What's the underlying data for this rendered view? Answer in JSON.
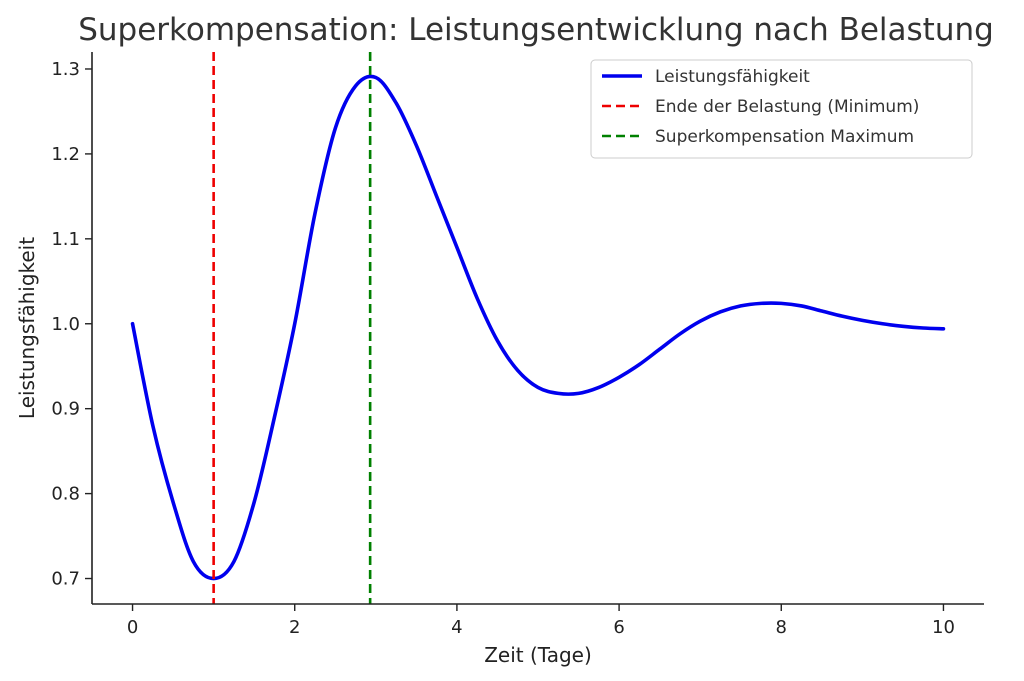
{
  "chart_data": {
    "type": "line",
    "title": "Superkompensation: Leistungsentwicklung nach Belastung",
    "xlabel": "Zeit (Tage)",
    "ylabel": "Leistungsfähigkeit",
    "xlim": [
      -0.5,
      10.5
    ],
    "ylim": [
      0.67,
      1.32
    ],
    "xticks": [
      0,
      2,
      4,
      6,
      8,
      10
    ],
    "yticks": [
      0.7,
      0.8,
      0.9,
      1.0,
      1.1,
      1.2,
      1.3
    ],
    "ytick_labels": [
      "0.7",
      "0.8",
      "0.9",
      "1.0",
      "1.1",
      "1.2",
      "1.3"
    ],
    "grid": false,
    "legend_position": "top-right",
    "series": [
      {
        "name": "Leistungsfähigkeit",
        "color": "#0000ee",
        "style": "solid",
        "x": [
          0,
          0.25,
          0.5,
          0.75,
          1.0,
          1.25,
          1.5,
          1.75,
          2.0,
          2.25,
          2.5,
          2.75,
          3.0,
          3.25,
          3.5,
          3.75,
          4.0,
          4.25,
          4.5,
          4.75,
          5.0,
          5.25,
          5.5,
          5.75,
          6.0,
          6.25,
          6.5,
          6.75,
          7.0,
          7.25,
          7.5,
          7.75,
          8.0,
          8.25,
          8.5,
          8.75,
          9.0,
          9.25,
          9.5,
          9.75,
          10.0
        ],
        "values": [
          1.0,
          0.88,
          0.79,
          0.72,
          0.7,
          0.72,
          0.79,
          0.89,
          1.0,
          1.13,
          1.23,
          1.28,
          1.29,
          1.26,
          1.21,
          1.15,
          1.09,
          1.03,
          0.98,
          0.945,
          0.925,
          0.918,
          0.918,
          0.925,
          0.937,
          0.952,
          0.97,
          0.988,
          1.003,
          1.014,
          1.021,
          1.024,
          1.024,
          1.021,
          1.015,
          1.009,
          1.004,
          1.0,
          0.997,
          0.995,
          0.994
        ]
      },
      {
        "name": "Ende der Belastung (Minimum)",
        "color": "#ee0000",
        "style": "dashed",
        "vline_x": 1.0
      },
      {
        "name": "Superkompensation Maximum",
        "color": "#008000",
        "style": "dashed",
        "vline_x": 2.93
      }
    ]
  }
}
